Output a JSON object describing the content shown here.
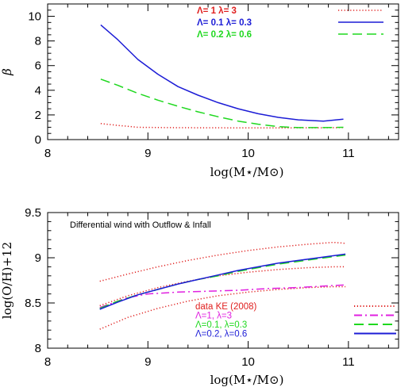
{
  "chart_data": [
    {
      "type": "line",
      "title": "",
      "xlabel": "log(M⋆/M⊙)",
      "ylabel": "β",
      "xlim": [
        8,
        11.5
      ],
      "ylim": [
        0,
        11
      ],
      "xticks": [
        8,
        9,
        10,
        11
      ],
      "yticks": [
        0,
        2,
        4,
        6,
        8,
        10
      ],
      "legend_position": "top-right",
      "series": [
        {
          "name": "Λ= 1 λ= 3",
          "color": "#e0201f",
          "dash": "dotted",
          "x": [
            8.53,
            8.7,
            8.9,
            9.2,
            9.5,
            9.8,
            10.1,
            10.4,
            10.7,
            10.95
          ],
          "y": [
            1.3,
            1.15,
            1.0,
            0.97,
            0.96,
            0.95,
            0.95,
            0.95,
            0.96,
            0.97
          ]
        },
        {
          "name": "Λ= 0.1 λ= 0.3",
          "color": "#1c1cd6",
          "dash": "solid",
          "x": [
            8.53,
            8.7,
            8.9,
            9.1,
            9.3,
            9.5,
            9.7,
            9.9,
            10.1,
            10.3,
            10.5,
            10.75,
            10.95
          ],
          "y": [
            9.3,
            8.1,
            6.5,
            5.3,
            4.3,
            3.6,
            3.0,
            2.5,
            2.1,
            1.8,
            1.6,
            1.5,
            1.65
          ]
        },
        {
          "name": "Λ= 0.2 λ= 0.6",
          "color": "#1fd81f",
          "dash": "dashed",
          "x": [
            8.53,
            8.7,
            8.9,
            9.1,
            9.3,
            9.5,
            9.7,
            9.9,
            10.1,
            10.3,
            10.5,
            10.75,
            10.95
          ],
          "y": [
            4.9,
            4.4,
            3.75,
            3.2,
            2.7,
            2.25,
            1.85,
            1.5,
            1.25,
            1.05,
            0.97,
            0.97,
            1.0
          ]
        }
      ]
    },
    {
      "type": "line",
      "title": "",
      "annotation": "Differential wind with Outflow & Infall",
      "xlabel": "log(M⋆/M⊙)",
      "ylabel": "log(O/H)+12",
      "xlim": [
        8,
        11.5
      ],
      "ylim": [
        8,
        9.5
      ],
      "xticks": [
        8,
        9,
        10,
        11
      ],
      "yticks": [
        8,
        8.5,
        9,
        9.5
      ],
      "legend_position": "bottom-right",
      "series": [
        {
          "name": "data KE (2008)",
          "color": "#e0201f",
          "dash": "dotted",
          "x": [
            8.52,
            8.8,
            9.1,
            9.4,
            9.7,
            10.0,
            10.3,
            10.6,
            10.85,
            10.97
          ],
          "y": [
            8.47,
            8.58,
            8.67,
            8.74,
            8.8,
            8.84,
            8.87,
            8.89,
            8.9,
            8.9
          ]
        },
        {
          "name": "data KE (2008) upper",
          "color": "#e0201f",
          "dash": "dotted",
          "x": [
            8.52,
            8.8,
            9.1,
            9.4,
            9.7,
            10.0,
            10.3,
            10.6,
            10.85,
            10.97
          ],
          "y": [
            8.74,
            8.82,
            8.9,
            8.97,
            9.03,
            9.08,
            9.12,
            9.15,
            9.17,
            9.16
          ]
        },
        {
          "name": "data KE (2008) lower",
          "color": "#e0201f",
          "dash": "dotted",
          "x": [
            8.52,
            8.8,
            9.1,
            9.4,
            9.7,
            10.0,
            10.3,
            10.6,
            10.85,
            10.97
          ],
          "y": [
            8.21,
            8.34,
            8.44,
            8.52,
            8.58,
            8.62,
            8.65,
            8.67,
            8.68,
            8.68
          ]
        },
        {
          "name": "Λ=1, λ=3",
          "color": "#e020e0",
          "dash": "dashdot",
          "x": [
            8.52,
            8.8,
            9.0,
            9.3,
            9.6,
            9.9,
            10.2,
            10.5,
            10.8,
            10.97
          ],
          "y": [
            8.45,
            8.56,
            8.6,
            8.62,
            8.63,
            8.64,
            8.66,
            8.67,
            8.69,
            8.7
          ]
        },
        {
          "name": "Λ=0.1, λ=0.3",
          "color": "#1fd81f",
          "dash": "dashed",
          "x": [
            8.52,
            8.7,
            8.9,
            9.1,
            9.3,
            9.5,
            9.7,
            9.9,
            10.1,
            10.3,
            10.5,
            10.7,
            10.97
          ],
          "y": [
            8.44,
            8.52,
            8.59,
            8.65,
            8.71,
            8.76,
            8.8,
            8.85,
            8.89,
            8.93,
            8.96,
            8.99,
            9.03
          ]
        },
        {
          "name": "Λ=0.2, λ=0.6",
          "color": "#1c1cd6",
          "dash": "solid",
          "x": [
            8.52,
            8.7,
            8.9,
            9.1,
            9.3,
            9.5,
            9.7,
            9.9,
            10.1,
            10.3,
            10.5,
            10.7,
            10.97
          ],
          "y": [
            8.43,
            8.51,
            8.59,
            8.65,
            8.71,
            8.76,
            8.81,
            8.86,
            8.9,
            8.94,
            8.97,
            9.0,
            9.04
          ]
        }
      ]
    }
  ]
}
